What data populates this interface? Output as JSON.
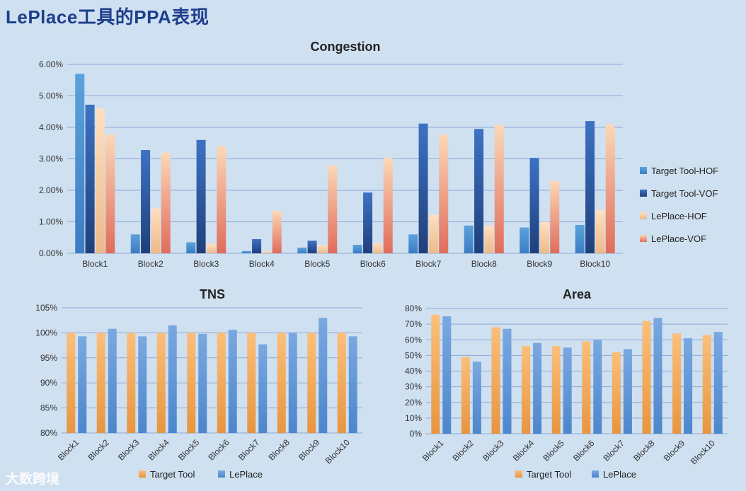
{
  "page": {
    "title": "LePlace工具的PPA表现"
  },
  "watermark": {
    "text": "大数跨境"
  },
  "chart_data": [
    {
      "id": "congestion",
      "type": "bar",
      "title": "Congestion",
      "categories": [
        "Block1",
        "Block2",
        "Block3",
        "Block4",
        "Block5",
        "Block6",
        "Block7",
        "Block8",
        "Block9",
        "Block10"
      ],
      "yticks": [
        "0.00%",
        "1.00%",
        "2.00%",
        "3.00%",
        "4.00%",
        "5.00%",
        "6.00%"
      ],
      "ylim": [
        0,
        6
      ],
      "unit": "%",
      "grid": true,
      "legend": "right",
      "series": [
        {
          "name": "Target Tool-HOF",
          "color_top": "#5ba3dc",
          "color_bottom": "#3b7cc4",
          "values": [
            5.7,
            0.6,
            0.35,
            0.07,
            0.18,
            0.27,
            0.6,
            0.88,
            0.82,
            0.9
          ]
        },
        {
          "name": "Target Tool-VOF",
          "color_top": "#3d72c4",
          "color_bottom": "#1f3f7a",
          "values": [
            4.72,
            3.28,
            3.6,
            0.45,
            0.4,
            1.93,
            4.12,
            3.95,
            3.03,
            4.2
          ]
        },
        {
          "name": "LePlace-HOF",
          "color_top": "#fde0c2",
          "color_bottom": "#eeb988",
          "values": [
            4.6,
            1.43,
            0.3,
            0.06,
            0.27,
            0.32,
            1.22,
            0.88,
            1.0,
            1.38
          ]
        },
        {
          "name": "LePlace-VOF",
          "color_top": "#fbd8b8",
          "color_bottom": "#e06c5a",
          "values": [
            3.77,
            3.2,
            3.4,
            1.35,
            2.8,
            3.03,
            3.77,
            4.08,
            2.3,
            4.1
          ]
        }
      ]
    },
    {
      "id": "tns",
      "type": "bar",
      "title": "TNS",
      "categories": [
        "Block1",
        "Block2",
        "Block3",
        "Block4",
        "Block5",
        "Block6",
        "Block7",
        "Block8",
        "Block9",
        "Block10"
      ],
      "yticks": [
        "80%",
        "85%",
        "90%",
        "95%",
        "100%",
        "105%"
      ],
      "ylim": [
        80,
        105
      ],
      "unit": "%",
      "grid": true,
      "legend": "bottom",
      "series": [
        {
          "name": "Target Tool",
          "color_top": "#fbbf7a",
          "color_bottom": "#e8953f",
          "values": [
            100,
            100,
            100,
            100,
            100,
            100,
            100,
            100,
            100,
            100
          ]
        },
        {
          "name": "LePlace",
          "color_top": "#7aa8e0",
          "color_bottom": "#4d86cc",
          "values": [
            99.3,
            100.8,
            99.3,
            101.5,
            99.8,
            100.6,
            97.7,
            100,
            103,
            99.3
          ]
        }
      ]
    },
    {
      "id": "area",
      "type": "bar",
      "title": "Area",
      "categories": [
        "Block1",
        "Block2",
        "Block3",
        "Block4",
        "Block5",
        "Block6",
        "Block7",
        "Block8",
        "Block9",
        "Block10"
      ],
      "yticks": [
        "0%",
        "10%",
        "20%",
        "30%",
        "40%",
        "50%",
        "60%",
        "70%",
        "80%"
      ],
      "ylim": [
        0,
        80
      ],
      "unit": "%",
      "grid": true,
      "legend": "bottom",
      "series": [
        {
          "name": "Target Tool",
          "color_top": "#fbbf7a",
          "color_bottom": "#e8953f",
          "values": [
            76,
            49,
            68,
            56,
            56,
            59,
            52,
            72,
            64,
            63
          ]
        },
        {
          "name": "LePlace",
          "color_top": "#7aa8e0",
          "color_bottom": "#4d86cc",
          "values": [
            75,
            46,
            67,
            58,
            55,
            60,
            54,
            74,
            61,
            65
          ]
        }
      ]
    }
  ]
}
